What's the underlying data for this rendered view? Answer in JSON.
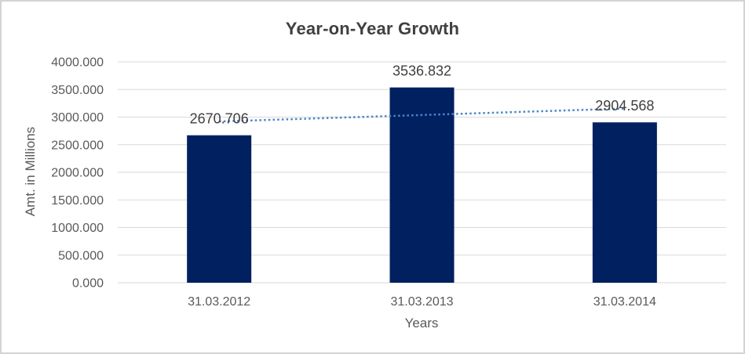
{
  "frame": {
    "background": "#ffffff",
    "border_color": "#d3d3d3"
  },
  "chart_data": {
    "type": "bar",
    "title": "Year-on-Year Growth",
    "categories": [
      "31.03.2012",
      "31.03.2013",
      "31.03.2014"
    ],
    "values": [
      2670.706,
      3536.832,
      2904.568
    ],
    "data_labels": [
      "2670.706",
      "3536.832",
      "2904.568"
    ],
    "xlabel": "Years",
    "ylabel": "Amt. in Millions",
    "ylim": [
      0,
      4000
    ],
    "ytick_step": 500,
    "ytick_labels": [
      "0.000",
      "500.000",
      "1000.000",
      "1500.000",
      "2000.000",
      "2500.000",
      "3000.000",
      "3500.000",
      "4000.000"
    ],
    "grid": true,
    "legend": false,
    "trendline": {
      "type": "linear",
      "style": "dotted",
      "start_value": 2920.5,
      "end_value": 3154.4
    },
    "colors": {
      "bar": "#002060",
      "trendline": "#4a86c8",
      "gridline": "#d9d9d9",
      "axis_text": "#595959",
      "data_label_text": "#404040",
      "title_text": "#404040"
    }
  }
}
